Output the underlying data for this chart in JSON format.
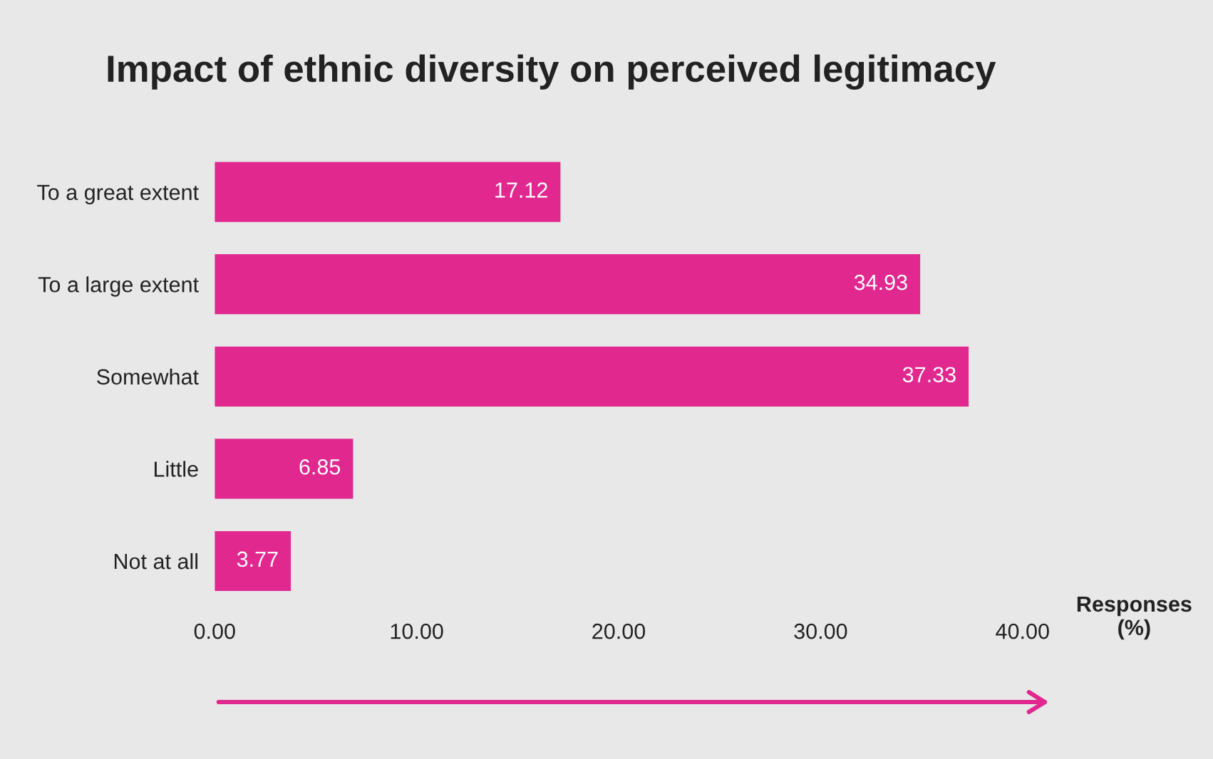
{
  "chart_data": {
    "type": "bar",
    "orientation": "horizontal",
    "title": "Impact of ethnic diversity on perceived legitimacy",
    "categories": [
      "To a great extent",
      "To a large extent",
      "Somewhat",
      "Little",
      "Not at all"
    ],
    "values": [
      17.12,
      34.93,
      37.33,
      6.85,
      3.77
    ],
    "color": "#e0288f",
    "data_labels": true,
    "xlabel": "Responses\n(%)",
    "xlim": [
      0,
      40
    ],
    "xticks": [
      {
        "value": 0,
        "label": "0.00"
      },
      {
        "value": 10,
        "label": "10.00"
      },
      {
        "value": 20,
        "label": "20.00"
      },
      {
        "value": 30,
        "label": "30.00"
      },
      {
        "value": 40,
        "label": "40.00"
      }
    ],
    "grid": false,
    "legend": false
  }
}
